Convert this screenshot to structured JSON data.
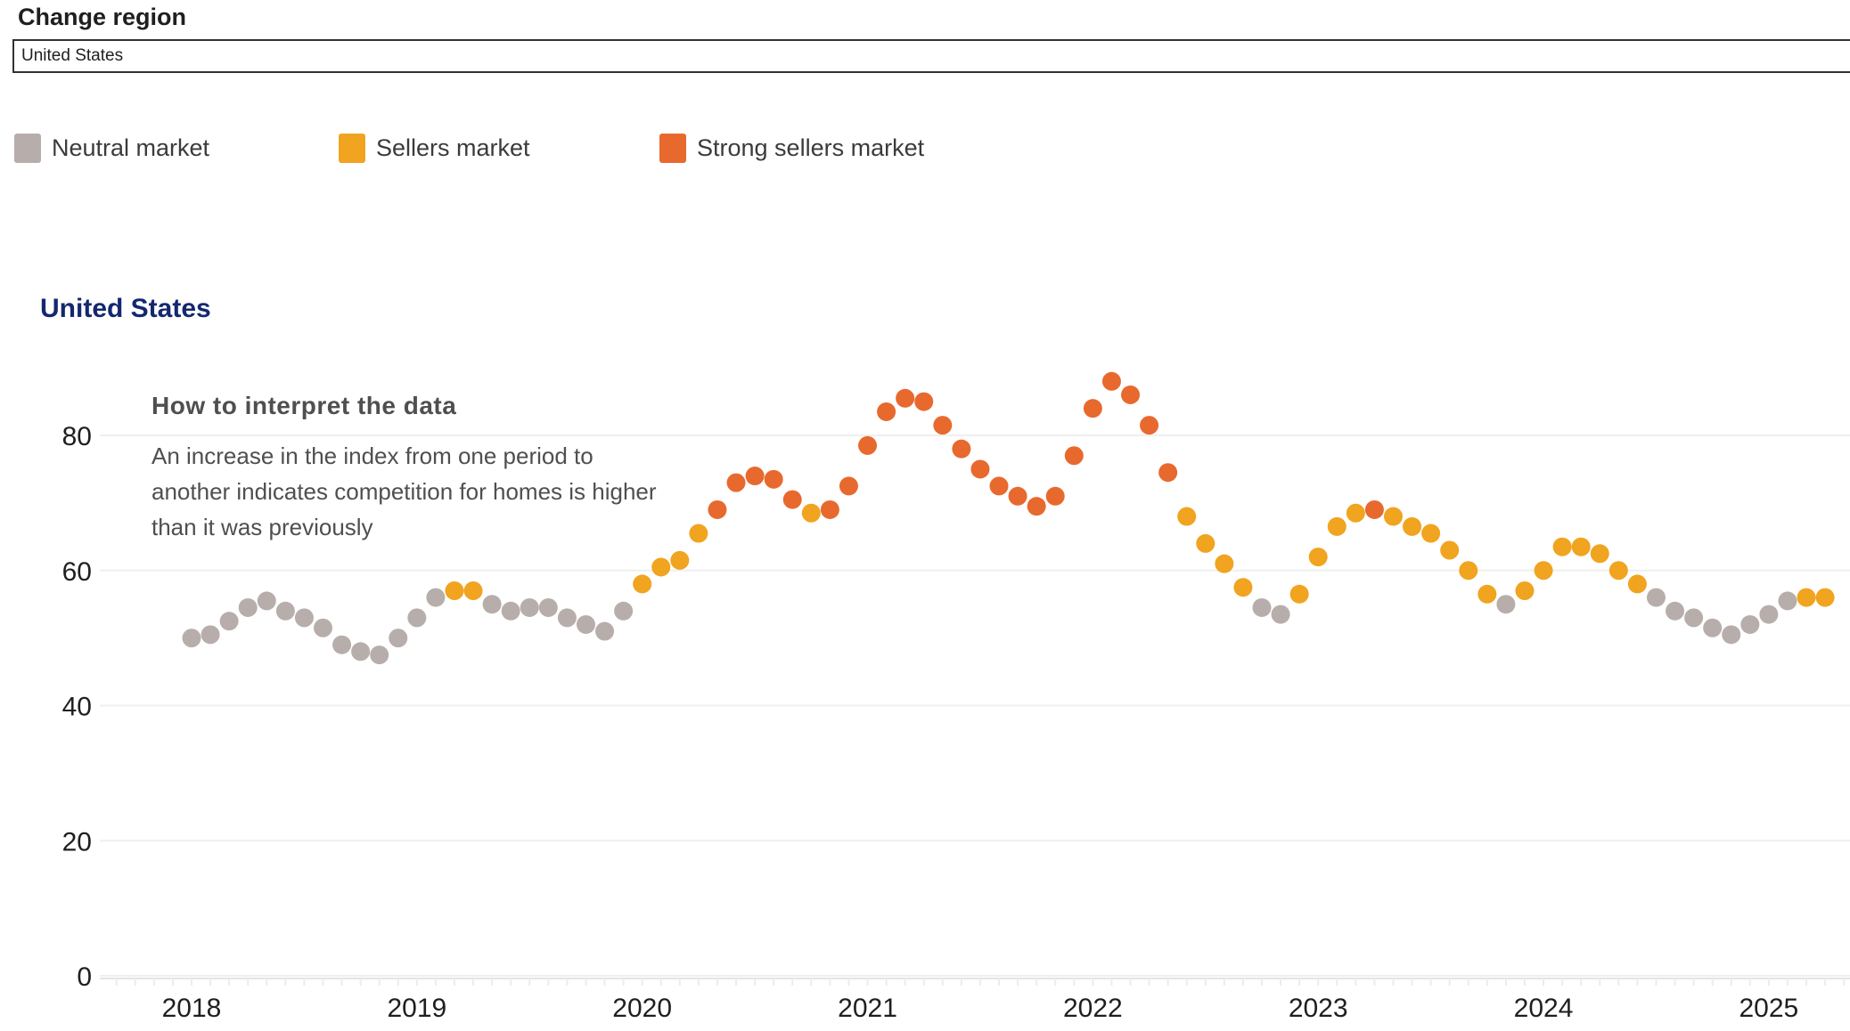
{
  "region_selector": {
    "label": "Change region",
    "value": "United States"
  },
  "legend": {
    "items": [
      {
        "key": "N",
        "label": "Neutral market",
        "color": "#b7aeab"
      },
      {
        "key": "S",
        "label": "Sellers market",
        "color": "#f0a41f"
      },
      {
        "key": "T",
        "label": "Strong sellers market",
        "color": "#e8692e"
      }
    ]
  },
  "annotation": {
    "title": "How to interpret the data",
    "lines": [
      "An increase in the index from one period to",
      "another indicates competition for homes is higher",
      "than it was previously"
    ]
  },
  "chart_data": {
    "type": "scatter",
    "title": "United States",
    "title_color": "#142870",
    "xlabel": "",
    "ylabel": "",
    "x_start": "2018-01",
    "x_interval": "month",
    "x_tick_labels": [
      "2018",
      "2019",
      "2020",
      "2021",
      "2022",
      "2023",
      "2024",
      "2025"
    ],
    "y_ticks": [
      0,
      20,
      40,
      60,
      80
    ],
    "ylim": [
      0,
      95
    ],
    "grid": true,
    "legend_position": "top-left",
    "category_labels": {
      "N": "Neutral market",
      "S": "Sellers market",
      "T": "Strong sellers market"
    },
    "category_colors": {
      "N": "#b7aeab",
      "S": "#f0a41f",
      "T": "#e8692e"
    },
    "values": [
      50,
      50.5,
      52.5,
      54.5,
      55.5,
      54,
      53,
      51.5,
      49,
      48,
      47.5,
      50,
      53,
      56,
      57,
      57,
      55,
      54,
      54.5,
      54.5,
      53,
      52,
      51,
      54,
      58,
      60.5,
      61.5,
      65.5,
      69,
      73,
      74,
      73.5,
      70.5,
      68.5,
      69,
      72.5,
      78.5,
      83.5,
      85.5,
      85,
      81.5,
      78,
      75,
      72.5,
      71,
      69.5,
      71,
      77,
      84,
      88,
      86,
      81.5,
      74.5,
      68,
      64,
      61,
      57.5,
      54.5,
      53.5,
      56.5,
      62,
      66.5,
      68.5,
      69,
      68,
      66.5,
      65.5,
      63,
      60,
      56.5,
      55,
      57,
      60,
      63.5,
      63.5,
      62.5,
      60,
      58,
      56,
      54,
      53,
      51.5,
      50.5,
      52,
      53.5,
      55.5,
      56,
      56
    ],
    "categories": [
      "N",
      "N",
      "N",
      "N",
      "N",
      "N",
      "N",
      "N",
      "N",
      "N",
      "N",
      "N",
      "N",
      "N",
      "S",
      "S",
      "N",
      "N",
      "N",
      "N",
      "N",
      "N",
      "N",
      "N",
      "S",
      "S",
      "S",
      "S",
      "T",
      "T",
      "T",
      "T",
      "T",
      "S",
      "T",
      "T",
      "T",
      "T",
      "T",
      "T",
      "T",
      "T",
      "T",
      "T",
      "T",
      "T",
      "T",
      "T",
      "T",
      "T",
      "T",
      "T",
      "T",
      "S",
      "S",
      "S",
      "S",
      "N",
      "N",
      "S",
      "S",
      "S",
      "S",
      "T",
      "S",
      "S",
      "S",
      "S",
      "S",
      "S",
      "N",
      "S",
      "S",
      "S",
      "S",
      "S",
      "S",
      "S",
      "N",
      "N",
      "N",
      "N",
      "N",
      "N",
      "N",
      "N",
      "S",
      "S"
    ]
  }
}
